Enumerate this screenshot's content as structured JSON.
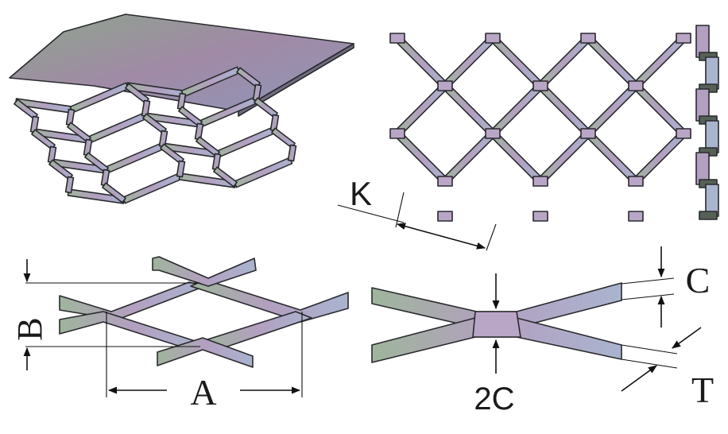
{
  "labels": {
    "k": "K",
    "b": "B",
    "a": "A",
    "c": "C",
    "two_c": "2C",
    "t": "T"
  },
  "colors": {
    "sheet_start": "#8ea58c",
    "sheet_mid": "#a08aa6",
    "sheet_end": "#8f96b8",
    "strand_start": "#9fb59c",
    "strand_mid": "#b39fc0",
    "strand_end": "#a9b4cf",
    "edge": "#2a2a2e"
  }
}
